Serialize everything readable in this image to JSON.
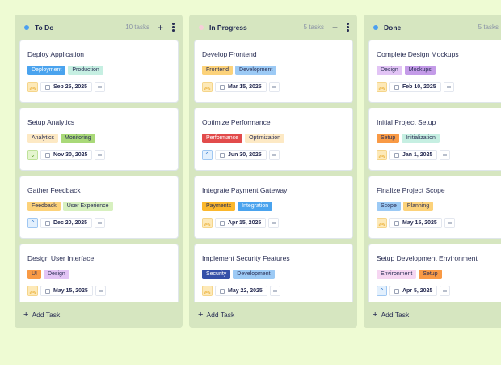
{
  "board": {
    "columns": [
      {
        "title": "To Do",
        "count": "10 tasks",
        "dot_color": "#4a9ff0",
        "show_actions": true,
        "add_label": "Add Task",
        "cards": [
          {
            "title": "Deploy Application",
            "tags": [
              {
                "label": "Deployment",
                "bg": "#4aa3ee",
                "fg": "#ffffff"
              },
              {
                "label": "Production",
                "bg": "#c6efe2",
                "fg": "#2a2f55"
              }
            ],
            "priority": {
              "level": "high",
              "glyph": "︽",
              "bg": "#fde9b8",
              "fg": "#e6a21a",
              "border": "#f5d58a"
            },
            "date": "Sep 25, 2025"
          },
          {
            "title": "Setup Analytics",
            "tags": [
              {
                "label": "Analytics",
                "bg": "#fde9c4",
                "fg": "#2a2f55"
              },
              {
                "label": "Monitoring",
                "bg": "#a9d978",
                "fg": "#2a2f55"
              }
            ],
            "priority": {
              "level": "low",
              "glyph": "⌄",
              "bg": "#e5f5cf",
              "fg": "#6aa63a",
              "border": "#bfe29a"
            },
            "date": "Nov 30, 2025"
          },
          {
            "title": "Gather Feedback",
            "tags": [
              {
                "label": "Feedback",
                "bg": "#fcd27a",
                "fg": "#2a2f55"
              },
              {
                "label": "User Experience",
                "bg": "#d7f0bf",
                "fg": "#2a2f55"
              }
            ],
            "priority": {
              "level": "medium",
              "glyph": "⌃",
              "bg": "#e3f0fd",
              "fg": "#3b7fd1",
              "border": "#9fc7f2"
            },
            "date": "Dec 20, 2025"
          },
          {
            "title": "Design User Interface",
            "tags": [
              {
                "label": "UI",
                "bg": "#f99a45",
                "fg": "#2a2f55"
              },
              {
                "label": "Design",
                "bg": "#e2c4f5",
                "fg": "#2a2f55"
              }
            ],
            "priority": {
              "level": "high",
              "glyph": "︽",
              "bg": "#fde9b8",
              "fg": "#e6a21a",
              "border": "#f5d58a"
            },
            "date": "May 15, 2025"
          }
        ]
      },
      {
        "title": "In Progress",
        "count": "5 tasks",
        "dot_color": "#f6cfd8",
        "show_actions": true,
        "add_label": "Add Task",
        "cards": [
          {
            "title": "Develop Frontend",
            "tags": [
              {
                "label": "Frontend",
                "bg": "#fcd27a",
                "fg": "#2a2f55"
              },
              {
                "label": "Development",
                "bg": "#9ccaf5",
                "fg": "#2a2f55"
              }
            ],
            "priority": {
              "level": "high",
              "glyph": "︽",
              "bg": "#fde9b8",
              "fg": "#e6a21a",
              "border": "#f5d58a"
            },
            "date": "Mar 15, 2025"
          },
          {
            "title": "Optimize Performance",
            "tags": [
              {
                "label": "Performance",
                "bg": "#e24b4b",
                "fg": "#ffffff"
              },
              {
                "label": "Optimization",
                "bg": "#fde9c4",
                "fg": "#2a2f55"
              }
            ],
            "priority": {
              "level": "medium",
              "glyph": "⌃",
              "bg": "#e3f0fd",
              "fg": "#3b7fd1",
              "border": "#9fc7f2"
            },
            "date": "Jun 30, 2025"
          },
          {
            "title": "Integrate Payment Gateway",
            "tags": [
              {
                "label": "Payments",
                "bg": "#fbb72c",
                "fg": "#2a2f55"
              },
              {
                "label": "Integration",
                "bg": "#4aa3ee",
                "fg": "#ffffff"
              }
            ],
            "priority": {
              "level": "high",
              "glyph": "︽",
              "bg": "#fde9b8",
              "fg": "#e6a21a",
              "border": "#f5d58a"
            },
            "date": "Apr 15, 2025"
          },
          {
            "title": "Implement Security Features",
            "tags": [
              {
                "label": "Security",
                "bg": "#3550a8",
                "fg": "#ffffff"
              },
              {
                "label": "Development",
                "bg": "#9ccaf5",
                "fg": "#2a2f55"
              }
            ],
            "priority": {
              "level": "high",
              "glyph": "︽",
              "bg": "#fde9b8",
              "fg": "#e6a21a",
              "border": "#f5d58a"
            },
            "date": "May 22, 2025"
          }
        ]
      },
      {
        "title": "Done",
        "count": "5 tasks",
        "dot_color": "#4a9ff0",
        "show_actions": true,
        "add_label": "Add Task",
        "cards": [
          {
            "title": "Complete Design Mockups",
            "tags": [
              {
                "label": "Design",
                "bg": "#e2c4f5",
                "fg": "#2a2f55"
              },
              {
                "label": "Mockups",
                "bg": "#c49be8",
                "fg": "#2a2f55"
              }
            ],
            "priority": {
              "level": "high",
              "glyph": "︽",
              "bg": "#fde9b8",
              "fg": "#e6a21a",
              "border": "#f5d58a"
            },
            "date": "Feb 10, 2025"
          },
          {
            "title": "Initial Project Setup",
            "tags": [
              {
                "label": "Setup",
                "bg": "#f99a45",
                "fg": "#2a2f55"
              },
              {
                "label": "Initialization",
                "bg": "#c6efe2",
                "fg": "#2a2f55"
              }
            ],
            "priority": {
              "level": "high",
              "glyph": "︽",
              "bg": "#fde9b8",
              "fg": "#e6a21a",
              "border": "#f5d58a"
            },
            "date": "Jan 1, 2025"
          },
          {
            "title": "Finalize Project Scope",
            "tags": [
              {
                "label": "Scope",
                "bg": "#9ccaf5",
                "fg": "#2a2f55"
              },
              {
                "label": "Planning",
                "bg": "#fcd27a",
                "fg": "#2a2f55"
              }
            ],
            "priority": {
              "level": "high",
              "glyph": "︽",
              "bg": "#fde9b8",
              "fg": "#e6a21a",
              "border": "#f5d58a"
            },
            "date": "May 15, 2025"
          },
          {
            "title": "Setup Development Environment",
            "tags": [
              {
                "label": "Environment",
                "bg": "#f6d6f2",
                "fg": "#2a2f55"
              },
              {
                "label": "Setup",
                "bg": "#f99a45",
                "fg": "#2a2f55"
              }
            ],
            "priority": {
              "level": "medium",
              "glyph": "⌃",
              "bg": "#e3f0fd",
              "fg": "#3b7fd1",
              "border": "#9fc7f2"
            },
            "date": "Apr 5, 2025"
          }
        ]
      }
    ]
  }
}
